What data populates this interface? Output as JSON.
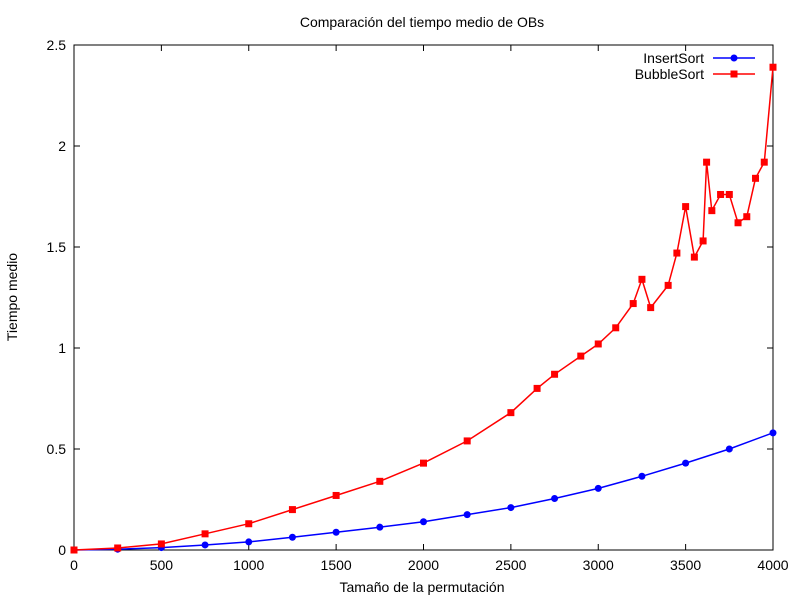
{
  "chart_data": {
    "type": "line",
    "title": "Comparación del tiempo medio de OBs",
    "xlabel": "Tamaño de la permutación",
    "ylabel": "Tiempo medio",
    "xlim": [
      0,
      4000
    ],
    "ylim": [
      0,
      2.5
    ],
    "x_ticks": [
      "0",
      "500",
      "1000",
      "1500",
      "2000",
      "2500",
      "3000",
      "3500",
      "4000"
    ],
    "y_ticks": [
      "0",
      "0.5",
      "1",
      "1.5",
      "2",
      "2.5"
    ],
    "grid": false,
    "legend": "top-right",
    "series": [
      {
        "name": "InsertSort",
        "color": "#0000ff",
        "marker": "circle",
        "x": [
          0,
          250,
          500,
          750,
          1000,
          1250,
          1500,
          1750,
          2000,
          2250,
          2500,
          2750,
          3000,
          3250,
          3500,
          3750,
          4000
        ],
        "y": [
          0.0,
          0.004,
          0.012,
          0.025,
          0.04,
          0.063,
          0.088,
          0.113,
          0.14,
          0.175,
          0.21,
          0.255,
          0.305,
          0.365,
          0.43,
          0.5,
          0.58
        ]
      },
      {
        "name": "BubbleSort",
        "color": "#ff0000",
        "marker": "square",
        "x": [
          0,
          250,
          500,
          750,
          1000,
          1250,
          1500,
          1750,
          2000,
          2250,
          2500,
          2650,
          2750,
          2900,
          3000,
          3100,
          3200,
          3250,
          3300,
          3400,
          3450,
          3500,
          3550,
          3600,
          3620,
          3650,
          3700,
          3750,
          3800,
          3850,
          3900,
          3950,
          4000
        ],
        "y": [
          0.0,
          0.01,
          0.03,
          0.08,
          0.13,
          0.2,
          0.27,
          0.34,
          0.43,
          0.54,
          0.68,
          0.8,
          0.87,
          0.96,
          1.02,
          1.1,
          1.22,
          1.34,
          1.2,
          1.31,
          1.47,
          1.7,
          1.45,
          1.53,
          1.92,
          1.68,
          1.76,
          1.76,
          1.62,
          1.65,
          1.84,
          1.92,
          2.39
        ]
      }
    ]
  }
}
